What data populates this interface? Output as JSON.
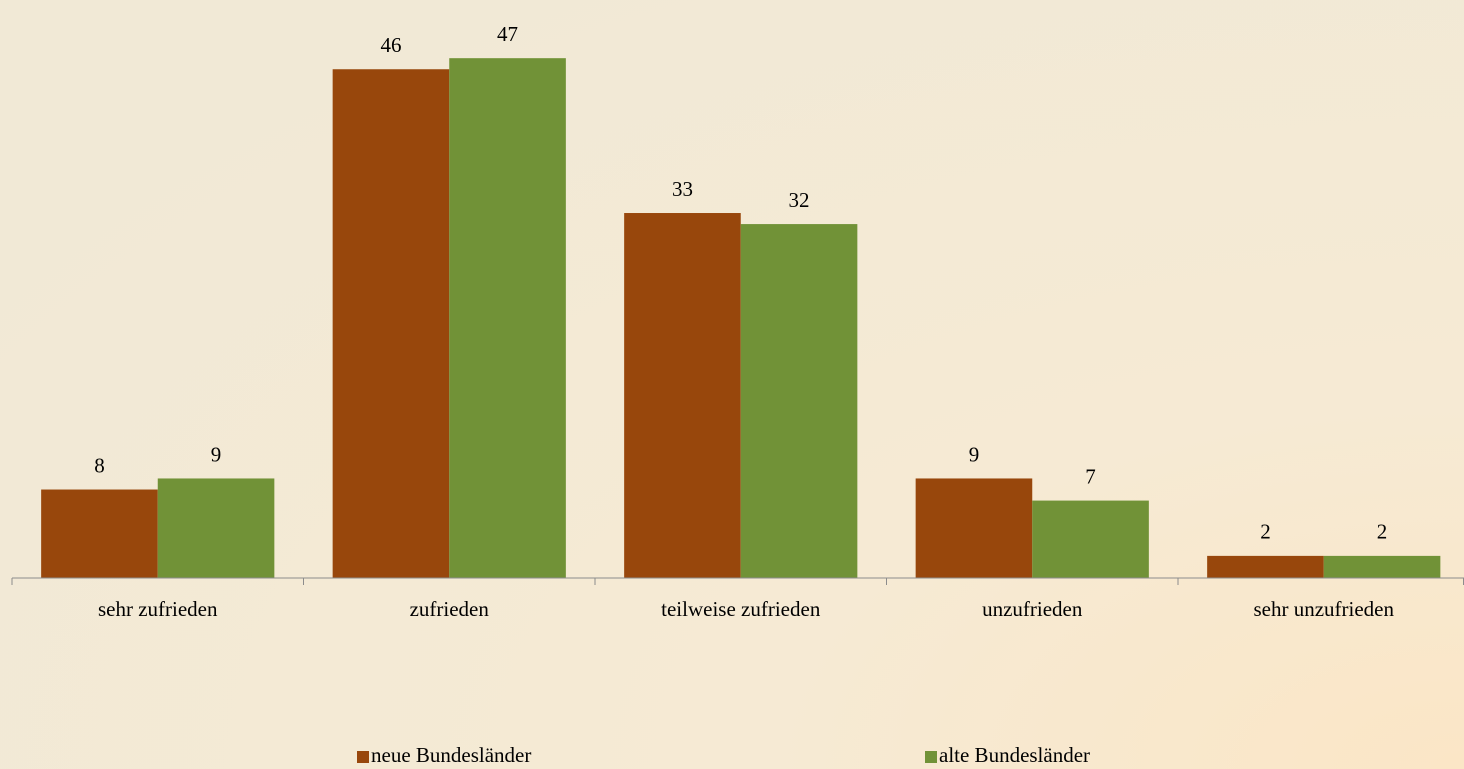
{
  "chart_data": {
    "type": "bar",
    "categories": [
      "sehr zufrieden",
      "zufrieden",
      "teilweise zufrieden",
      "unzufrieden",
      "sehr unzufrieden"
    ],
    "series": [
      {
        "name": "neue Bundesländer",
        "color": "#98470c",
        "values": [
          8,
          46,
          33,
          9,
          2
        ]
      },
      {
        "name": "alte Bundesländer",
        "color": "#719237",
        "values": [
          9,
          47,
          32,
          7,
          2
        ]
      }
    ],
    "ylim": [
      0,
      50
    ],
    "legend": "bottom"
  }
}
